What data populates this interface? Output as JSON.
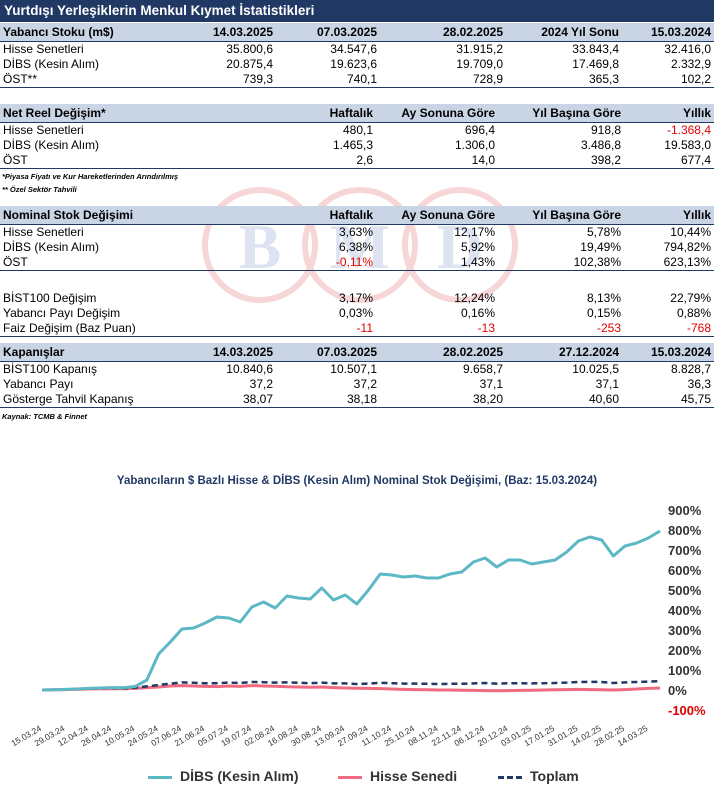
{
  "title": "Yurtdışı Yerleşiklerin Menkul Kıymet İstatistikleri",
  "t1": {
    "headers": [
      "Yabancı Stoku (m$)",
      "14.03.2025",
      "07.03.2025",
      "28.02.2025",
      "2024 Yıl Sonu",
      "15.03.2024"
    ],
    "rows": [
      [
        "Hisse Senetleri",
        "35.800,6",
        "34.547,6",
        "31.915,2",
        "33.843,4",
        "32.416,0"
      ],
      [
        "DİBS (Kesin Alım)",
        "20.875,4",
        "19.623,6",
        "19.709,0",
        "17.469,8",
        "2.332,9"
      ],
      [
        "ÖST**",
        "739,3",
        "740,1",
        "728,9",
        "365,3",
        "102,2"
      ]
    ]
  },
  "t2": {
    "headers": [
      "Net Reel Değişim*",
      "Haftalık",
      "Ay Sonuna Göre",
      "Yıl Başına Göre",
      "Yıllık"
    ],
    "rows": [
      [
        "Hisse Senetleri",
        "480,1",
        "696,4",
        "918,8",
        "-1.368,4"
      ],
      [
        "DİBS (Kesin Alım)",
        "1.465,3",
        "1.306,0",
        "3.486,8",
        "19.583,0"
      ],
      [
        "ÖST",
        "2,6",
        "14,0",
        "398,2",
        "677,4"
      ]
    ]
  },
  "notes": [
    "*Piyasa Fiyatı ve Kur Hareketlerinden Arındırılmış",
    "** Özel Sektör Tahvili"
  ],
  "t3": {
    "headers": [
      "Nominal Stok Değişimi",
      "Haftalık",
      "Ay Sonuna Göre",
      "Yıl Başına Göre",
      "Yıllık"
    ],
    "rows": [
      [
        "Hisse Senetleri",
        "3,63%",
        "12,17%",
        "5,78%",
        "10,44%"
      ],
      [
        "DİBS (Kesin Alım)",
        "6,38%",
        "5,92%",
        "19,49%",
        "794,82%"
      ],
      [
        "ÖST",
        "-0,11%",
        "1,43%",
        "102,38%",
        "623,13%"
      ]
    ]
  },
  "t4": {
    "rows": [
      [
        "BİST100 Değişim",
        "3,17%",
        "12,24%",
        "8,13%",
        "22,79%"
      ],
      [
        "Yabancı Payı Değişim",
        "0,03%",
        "0,16%",
        "0,15%",
        "0,88%"
      ],
      [
        "Faiz Değişim (Baz Puan)",
        "-11",
        "-13",
        "-253",
        "-768"
      ]
    ]
  },
  "t5": {
    "headers": [
      "Kapanışlar",
      "14.03.2025",
      "07.03.2025",
      "28.02.2025",
      "27.12.2024",
      "15.03.2024"
    ],
    "rows": [
      [
        "BİST100 Kapanış",
        "10.840,6",
        "10.507,1",
        "9.658,7",
        "10.025,5",
        "8.828,7"
      ],
      [
        "Yabancı Payı",
        "37,2",
        "37,2",
        "37,1",
        "37,1",
        "36,3"
      ],
      [
        "Gösterge Tahvil Kapanış",
        "38,07",
        "38,18",
        "38,20",
        "40,60",
        "45,75"
      ]
    ]
  },
  "source": "Kaynak: TCMB & Finnet",
  "watermark_letters": [
    "B",
    "M",
    "D"
  ],
  "colors": {
    "header_bg": "#1f3864",
    "subheader_bg": "#c9d4e5",
    "negative": "#e00000",
    "dibs": "#5bb8c4",
    "hisse": "#f06a80",
    "toplam": "#1f3864"
  },
  "chart_data": {
    "type": "line",
    "title": "Yabancıların $ Bazlı Hisse & DİBS (Kesin Alım) Nominal Stok Değişimi, (Baz: 15.03.2024)",
    "ylim": [
      -100,
      900
    ],
    "yticks": [
      "-100%",
      "0%",
      "100%",
      "200%",
      "300%",
      "400%",
      "500%",
      "600%",
      "700%",
      "800%",
      "900%"
    ],
    "y_axis_side": "right",
    "x_tick_labels": [
      "15.03.24",
      "29.03.24",
      "12.04.24",
      "26.04.24",
      "10.05.24",
      "24.05.24",
      "07.06.24",
      "21.06.24",
      "05.07.24",
      "19.07.24",
      "02.08.24",
      "16.08.24",
      "30.08.24",
      "13.09.24",
      "27.09.24",
      "11.10.24",
      "25.10.24",
      "08.11.24",
      "22.11.24",
      "06.12.24",
      "20.12.24",
      "03.01.25",
      "17.01.25",
      "31.01.25",
      "14.02.25",
      "28.02.25",
      "14.03.25"
    ],
    "x_week_index": [
      0,
      2,
      4,
      6,
      8,
      10,
      12,
      14,
      16,
      18,
      20,
      22,
      24,
      26,
      28,
      30,
      32,
      34,
      36,
      38,
      40,
      42,
      44,
      46,
      48,
      50,
      52
    ],
    "legend_position": "bottom",
    "series": [
      {
        "name": "DİBS (Kesin Alım)",
        "color": "#5bb8c4",
        "values": [
          0,
          1,
          3,
          5,
          8,
          10,
          12,
          11,
          18,
          50,
          180,
          240,
          305,
          310,
          335,
          365,
          360,
          340,
          415,
          440,
          410,
          470,
          460,
          455,
          510,
          450,
          475,
          430,
          500,
          580,
          575,
          565,
          570,
          560,
          560,
          580,
          590,
          640,
          660,
          615,
          650,
          650,
          630,
          640,
          650,
          690,
          745,
          765,
          750,
          670,
          720,
          735,
          760,
          795
        ]
      },
      {
        "name": "Hisse Senedi",
        "color": "#f06a80",
        "values": [
          0,
          1,
          2,
          3,
          5,
          6,
          7,
          6,
          8,
          12,
          15,
          20,
          22,
          20,
          18,
          17,
          20,
          18,
          22,
          20,
          19,
          16,
          15,
          14,
          15,
          12,
          10,
          9,
          8,
          7,
          5,
          3,
          2,
          1,
          0,
          0,
          -1,
          -2,
          -3,
          -4,
          -3,
          -2,
          -1,
          0,
          1,
          2,
          3,
          2,
          1,
          0,
          2,
          5,
          8,
          10
        ]
      },
      {
        "name": "Toplam",
        "color": "#1f3864",
        "dash": true,
        "values": [
          0,
          1,
          3,
          5,
          7,
          8,
          9,
          8,
          12,
          18,
          25,
          32,
          38,
          36,
          34,
          34,
          37,
          35,
          40,
          39,
          37,
          38,
          36,
          34,
          37,
          33,
          33,
          30,
          32,
          36,
          34,
          32,
          32,
          31,
          30,
          31,
          31,
          33,
          35,
          32,
          34,
          34,
          33,
          34,
          35,
          37,
          40,
          41,
          40,
          35,
          38,
          40,
          42,
          44
        ]
      }
    ]
  }
}
